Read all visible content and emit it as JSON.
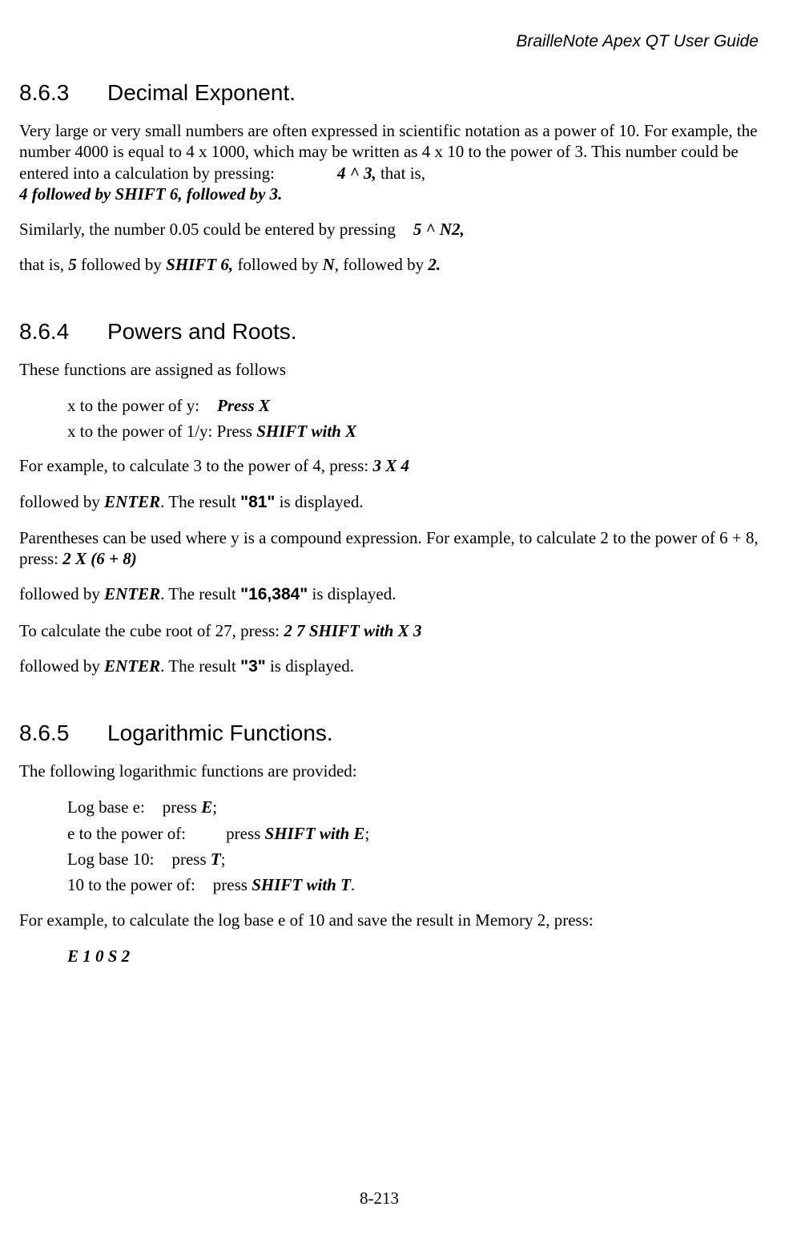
{
  "document": {
    "running_header": "BrailleNote Apex QT User Guide",
    "page_number": "8-213"
  },
  "s1": {
    "num": "8.6.3",
    "title": "Decimal Exponent.",
    "p1a": "Very large or very small numbers are often expressed in scientific notation as a power of 10. For example, the number 4000 is equal to 4 x 1000, which may be written as 4 x 10 to the power of 3. This number could be entered into a calculation by pressing:",
    "p1b": "4 ^ 3,",
    "p1c": " that is,",
    "p1d": "4 followed by SHIFT 6, followed by 3.",
    "p2a": "Similarly, the number 0.05 could be entered by pressing",
    "p2b": "5 ^ N2,",
    "p3a": "that is, ",
    "p3b": "5",
    "p3c": " followed by ",
    "p3d": "SHIFT 6,",
    "p3e": " followed by ",
    "p3f": "N",
    "p3g": ", followed by ",
    "p3h": "2."
  },
  "s2": {
    "num": "8.6.4",
    "title": "Powers and Roots.",
    "p1": "These functions are assigned as follows",
    "r1a": "x to the power of y:",
    "r1b": "Press X",
    "r2a": "x to the power of 1/y:",
    "r2b": "Press ",
    "r2c": "SHIFT with X",
    "p2a": "For example, to calculate 3 to the power of 4, press: ",
    "p2b": "3 X 4",
    "p3a": "followed by ",
    "p3b": "ENTER",
    "p3c": ". The result ",
    "p3d": "\"81\"",
    "p3e": " is displayed.",
    "p4a": "Parentheses can be used where y is a compound expression. For example, to calculate 2 to the power of 6 + 8, press: ",
    "p4b": "2 X (6 + 8)",
    "p5a": "followed by ",
    "p5b": "ENTER",
    "p5c": ". The result ",
    "p5d": "\"16,384\"",
    "p5e": " is displayed.",
    "p6a": "To calculate the cube root of 27, press: ",
    "p6b": "2 7 SHIFT with X 3",
    "p7a": "followed by ",
    "p7b": "ENTER",
    "p7c": ". The result ",
    "p7d": "\"3\"",
    "p7e": " is displayed."
  },
  "s3": {
    "num": "8.6.5",
    "title": "Logarithmic Functions.",
    "p1": "The following logarithmic functions are provided:",
    "r1a": "Log base e:",
    "r1b_pre": "press ",
    "r1b": "E",
    "r1b_post": ";",
    "r2a": "e to the power of:",
    "r2b_pre": "press ",
    "r2b": "SHIFT with E",
    "r2b_post": ";",
    "r3a": "Log base 10:",
    "r3b_pre": "press ",
    "r3b": "T",
    "r3b_post": ";",
    "r4a": "10 to the power of:",
    "r4b_pre": "press ",
    "r4b": "SHIFT with T",
    "r4b_post": ".",
    "p2": "For example, to calculate the log base e of 10 and save the result in Memory 2, press:",
    "r5": "E 1 0 S 2"
  }
}
